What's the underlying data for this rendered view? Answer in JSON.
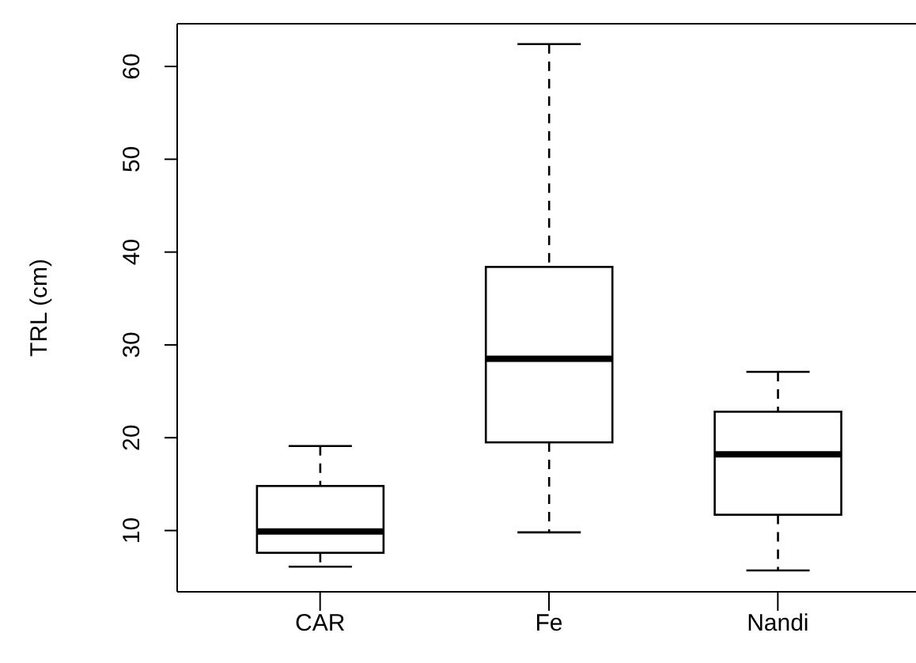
{
  "chart_data": {
    "type": "box",
    "ylabel": "TRL (cm)",
    "categories": [
      "CAR",
      "Fe",
      "Nandi"
    ],
    "boxes": [
      {
        "low": 6.1,
        "q1": 7.6,
        "median": 9.9,
        "q3": 14.8,
        "high": 19.1
      },
      {
        "low": 9.8,
        "q1": 19.5,
        "median": 28.5,
        "q3": 38.4,
        "high": 62.4
      },
      {
        "low": 5.7,
        "q1": 11.7,
        "median": 18.2,
        "q3": 22.8,
        "high": 27.1
      }
    ],
    "ylim": [
      3.4,
      64.6
    ],
    "yticks": [
      10,
      20,
      30,
      40,
      50,
      60
    ],
    "grid": false
  }
}
